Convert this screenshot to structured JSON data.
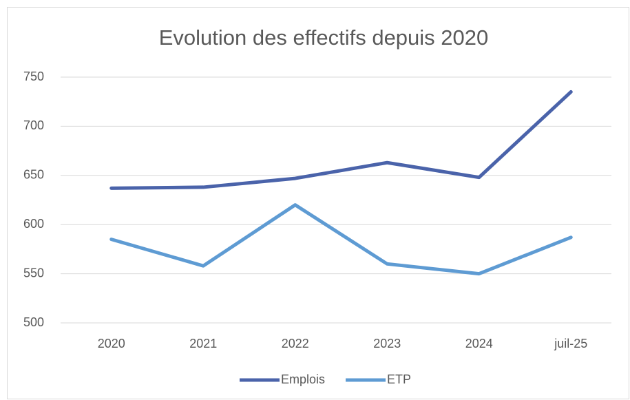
{
  "chart_data": {
    "type": "line",
    "title": "Evolution des effectifs depuis 2020",
    "categories": [
      "2020",
      "2021",
      "2022",
      "2023",
      "2024",
      "juil-25"
    ],
    "series": [
      {
        "name": "Emplois",
        "color": "#4a63aa",
        "values": [
          637,
          638,
          647,
          663,
          648,
          735
        ]
      },
      {
        "name": "ETP",
        "color": "#5e9bd3",
        "values": [
          585,
          558,
          620,
          560,
          550,
          587
        ]
      }
    ],
    "ylim": [
      500,
      750
    ],
    "yticks": [
      500,
      550,
      600,
      650,
      700,
      750
    ],
    "grid": true,
    "legend": "bottom"
  }
}
